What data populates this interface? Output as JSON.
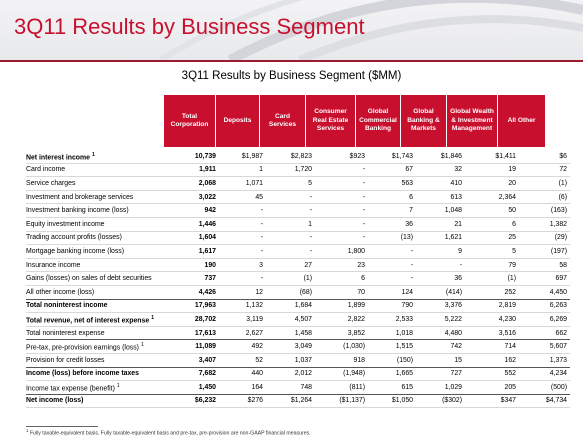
{
  "slide": {
    "title": "3Q11 Results by Business Segment"
  },
  "table_title": "3Q11 Results by Business Segment ($MM)",
  "columns": [
    "Total Corporation",
    "Deposits",
    "Card Services",
    "Consumer Real Estate Services",
    "Global Commercial Banking",
    "Global Banking & Markets",
    "Global Wealth & Investment Management",
    "All Other"
  ],
  "rows": [
    {
      "label": "Net interest income",
      "sup": "1",
      "bold": true,
      "values": [
        "10,739",
        "$1,987",
        "$2,823",
        "$923",
        "$1,743",
        "$1,846",
        "$1,411",
        "$6"
      ]
    },
    {
      "label": "Card income",
      "values": [
        "1,911",
        "1",
        "1,720",
        "-",
        "67",
        "32",
        "19",
        "72"
      ]
    },
    {
      "label": "Service charges",
      "values": [
        "2,068",
        "1,071",
        "5",
        "-",
        "563",
        "410",
        "20",
        "(1)"
      ]
    },
    {
      "label": "Investment and brokerage services",
      "values": [
        "3,022",
        "45",
        "-",
        "-",
        "6",
        "613",
        "2,364",
        "(6)"
      ]
    },
    {
      "label": "Investment banking income (loss)",
      "values": [
        "942",
        "-",
        "-",
        "-",
        "7",
        "1,048",
        "50",
        "(163)"
      ]
    },
    {
      "label": "Equity investment income",
      "values": [
        "1,446",
        "-",
        "1",
        "-",
        "36",
        "21",
        "6",
        "1,382"
      ]
    },
    {
      "label": "Trading account profits (losses)",
      "values": [
        "1,604",
        "-",
        "-",
        "-",
        "(13)",
        "1,621",
        "25",
        "(29)"
      ]
    },
    {
      "label": "Mortgage banking income (loss)",
      "values": [
        "1,617",
        "-",
        "-",
        "1,800",
        "-",
        "9",
        "5",
        "(197)"
      ]
    },
    {
      "label": "Insurance income",
      "values": [
        "190",
        "3",
        "27",
        "23",
        "-",
        "-",
        "79",
        "58"
      ]
    },
    {
      "label": "Gains (losses) on sales of debt securities",
      "values": [
        "737",
        "-",
        "(1)",
        "6",
        "-",
        "36",
        "(1)",
        "697"
      ]
    },
    {
      "label": "All other income (loss)",
      "sep": true,
      "values": [
        "4,426",
        "12",
        "(68)",
        "70",
        "124",
        "(414)",
        "252",
        "4,450"
      ]
    },
    {
      "label": "Total noninterest income",
      "bold": true,
      "values": [
        "17,963",
        "1,132",
        "1,684",
        "1,899",
        "790",
        "3,376",
        "2,819",
        "6,263"
      ]
    },
    {
      "label": "Total revenue, net of interest expense",
      "sup": "1",
      "bold": true,
      "values": [
        "28,702",
        "3,119",
        "4,507",
        "2,822",
        "2,533",
        "5,222",
        "4,230",
        "6,269"
      ]
    },
    {
      "label": "Total noninterest expense",
      "sep": true,
      "values": [
        "17,613",
        "2,627",
        "1,458",
        "3,852",
        "1,018",
        "4,480",
        "3,516",
        "662"
      ]
    },
    {
      "label": "Pre-tax, pre-provision earnings (loss)",
      "sup": "1",
      "values": [
        "11,089",
        "492",
        "3,049",
        "(1,030)",
        "1,515",
        "742",
        "714",
        "5,607"
      ]
    },
    {
      "label": "Provision for credit losses",
      "sep": true,
      "values": [
        "3,407",
        "52",
        "1,037",
        "918",
        "(150)",
        "15",
        "162",
        "1,373"
      ]
    },
    {
      "label": "Income (loss) before income taxes",
      "bold": true,
      "values": [
        "7,682",
        "440",
        "2,012",
        "(1,948)",
        "1,665",
        "727",
        "552",
        "4,234"
      ]
    },
    {
      "label": "Income tax expense (benefit)",
      "sup": "1",
      "sep": true,
      "values": [
        "1,450",
        "164",
        "748",
        "(811)",
        "615",
        "1,029",
        "205",
        "(500)"
      ]
    },
    {
      "label": "Net income (loss)",
      "bold": true,
      "values": [
        "$6,232",
        "$276",
        "$1,264",
        "($1,137)",
        "$1,050",
        "($302)",
        "$347",
        "$4,734"
      ]
    }
  ],
  "footnote": {
    "sup": "1",
    "text": "Fully taxable-equivalent basis. Fully taxable-equivalent basis and pre-tax, pre-provision are non-GAAP financial measures."
  },
  "colors": {
    "accent": "#c8102e",
    "rule": "#9b1c2e"
  }
}
